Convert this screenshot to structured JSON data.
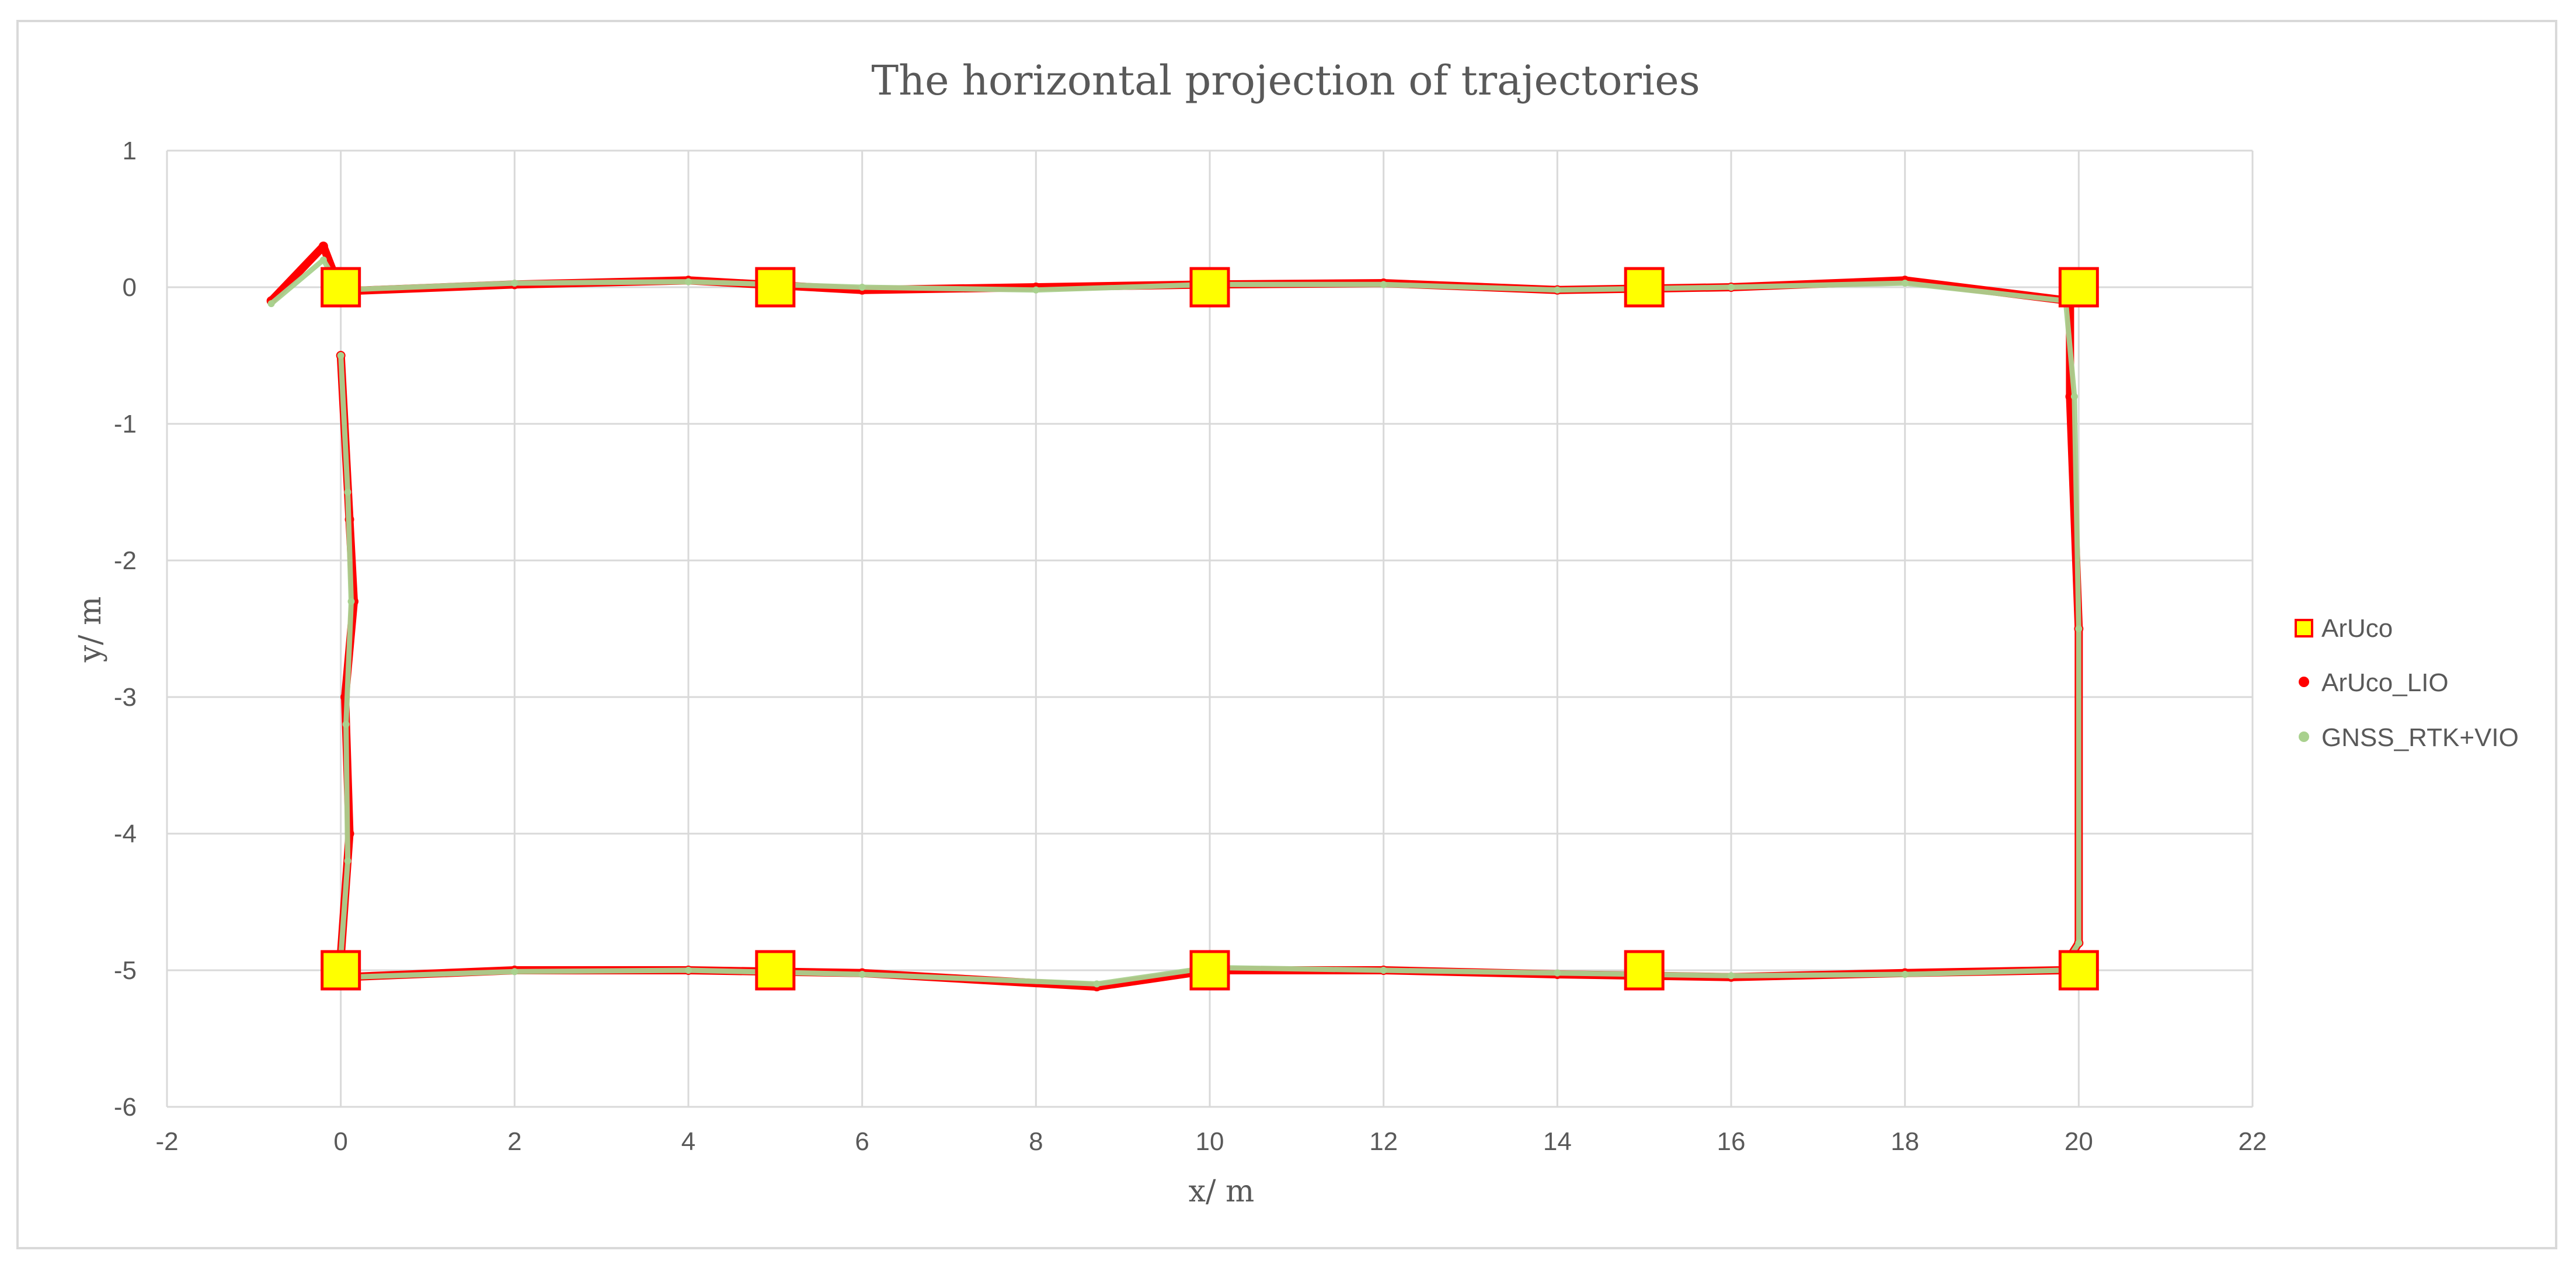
{
  "chart_data": {
    "type": "scatter",
    "title": "The horizontal projection of trajectories",
    "xlabel": "x/ m",
    "ylabel": "y/ m",
    "xlim": [
      -2,
      22
    ],
    "ylim": [
      -6,
      1
    ],
    "xticks": [
      -2,
      0,
      2,
      4,
      6,
      8,
      10,
      12,
      14,
      16,
      18,
      20,
      22
    ],
    "yticks": [
      1,
      0,
      -1,
      -2,
      -3,
      -4,
      -5,
      -6
    ],
    "grid": true,
    "legend_position": "right",
    "series": [
      {
        "name": "ArUco",
        "marker": "square",
        "color": "#ffff00",
        "edge_color": "#ff0000",
        "points": [
          [
            0,
            0
          ],
          [
            5,
            0
          ],
          [
            10,
            0
          ],
          [
            15,
            0
          ],
          [
            20,
            0
          ],
          [
            0,
            -5
          ],
          [
            5,
            -5
          ],
          [
            10,
            -5
          ],
          [
            15,
            -5
          ],
          [
            20,
            -5
          ]
        ]
      },
      {
        "name": "ArUco_LIO",
        "marker": "dot",
        "color": "#ff0000",
        "path": "rectangle loop starting near (0,-0.5) heading to (0,-5), along y=-5 to x=20, up x=20 to y=0, back along y=0 to x=-0.8",
        "key_points": [
          [
            0,
            -0.5
          ],
          [
            0.1,
            -1.7
          ],
          [
            0.15,
            -2.3
          ],
          [
            0.05,
            -3
          ],
          [
            0.1,
            -4
          ],
          [
            0,
            -4.9
          ],
          [
            0.05,
            -5.05
          ],
          [
            2,
            -5
          ],
          [
            4,
            -5
          ],
          [
            6,
            -5.02
          ],
          [
            8.7,
            -5.12
          ],
          [
            10,
            -5
          ],
          [
            12,
            -5
          ],
          [
            14,
            -5.03
          ],
          [
            16,
            -5.05
          ],
          [
            18,
            -5.02
          ],
          [
            19.8,
            -5
          ],
          [
            20,
            -4.8
          ],
          [
            20,
            -2.5
          ],
          [
            19.9,
            -0.8
          ],
          [
            19.9,
            -0.1
          ],
          [
            18,
            0.05
          ],
          [
            16,
            0
          ],
          [
            14,
            -0.02
          ],
          [
            12,
            0.03
          ],
          [
            10,
            0.02
          ],
          [
            8,
            0
          ],
          [
            6,
            -0.02
          ],
          [
            4,
            0.05
          ],
          [
            2,
            0.02
          ],
          [
            0,
            -0.03
          ],
          [
            -0.2,
            0.3
          ],
          [
            -0.8,
            -0.1
          ]
        ]
      },
      {
        "name": "GNSS_RTK+VIO",
        "marker": "dot",
        "color": "#a9d18e",
        "path": "closely follows ArUco_LIO trajectory",
        "key_points": [
          [
            0,
            -0.5
          ],
          [
            0.08,
            -1.5
          ],
          [
            0.12,
            -2.3
          ],
          [
            0.06,
            -3.2
          ],
          [
            0.08,
            -4.2
          ],
          [
            0,
            -4.9
          ],
          [
            0.1,
            -5.05
          ],
          [
            2,
            -5.01
          ],
          [
            4,
            -5
          ],
          [
            6,
            -5.03
          ],
          [
            8.7,
            -5.1
          ],
          [
            10,
            -4.98
          ],
          [
            12,
            -5
          ],
          [
            14,
            -5.02
          ],
          [
            16,
            -5.04
          ],
          [
            18,
            -5.03
          ],
          [
            19.8,
            -5
          ],
          [
            20,
            -4.8
          ],
          [
            20,
            -2.5
          ],
          [
            19.95,
            -0.8
          ],
          [
            19.85,
            -0.1
          ],
          [
            18,
            0.03
          ],
          [
            16,
            0
          ],
          [
            14,
            -0.02
          ],
          [
            12,
            0.02
          ],
          [
            10,
            0.02
          ],
          [
            8,
            -0.02
          ],
          [
            6,
            0
          ],
          [
            4,
            0.04
          ],
          [
            2,
            0.03
          ],
          [
            0,
            -0.02
          ],
          [
            -0.2,
            0.2
          ],
          [
            -0.8,
            -0.12
          ]
        ]
      }
    ]
  }
}
